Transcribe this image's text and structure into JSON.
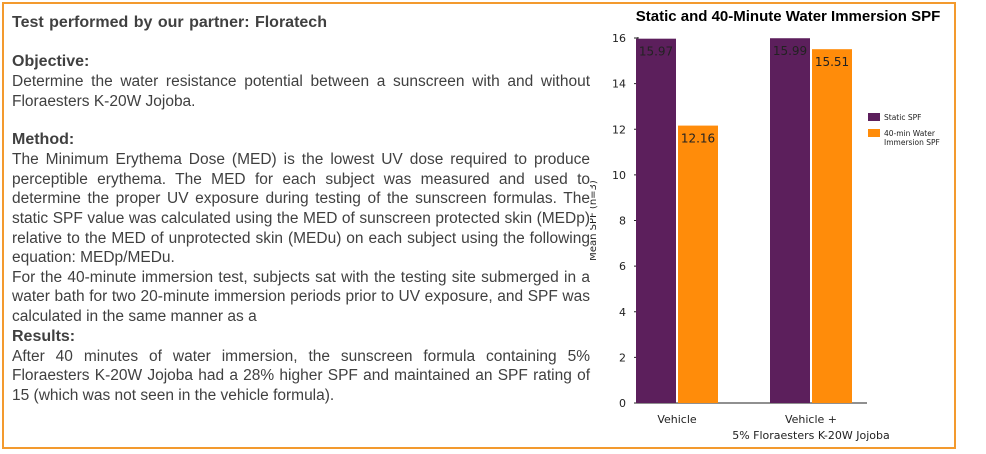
{
  "text": {
    "heading": "Test performed by our partner: Floratech",
    "objective_title": "Objective:",
    "objective_body": "Determine the water resistance potential between a sunscreen with and without Floraesters K-20W Jojoba.",
    "method_title": "Method:",
    "method_body_1": "The Minimum Erythema Dose (MED) is the lowest UV dose required to produce perceptible erythema. The MED for each subject was measured and used to determine the proper UV exposure during testing of the sunscreen formulas. The static SPF value was calculated using the MED of sunscreen protected skin (MEDp) relative to the MED of unprotected skin (MEDu) on each subject using the following equation: MEDp/MEDu.",
    "method_body_2": "For the 40-minute immersion test, subjects sat with the testing site submerged in a water bath for two 20-minute immersion periods prior to UV exposure, and SPF was calculated in the same manner as a",
    "results_title": "Results:",
    "results_body": "After 40 minutes of water immersion, the sunscreen formula containing 5% Floraesters K-20W Jojoba had a 28% higher SPF and maintained an SPF rating of 15 (which was not seen in the vehicle formula)."
  },
  "colors": {
    "border": "#f39a2e",
    "static": "#5c1f5c",
    "immersion": "#ff8c0a"
  },
  "chart_data": {
    "type": "bar",
    "title": "Static and 40-Minute Water Immersion SPF",
    "xlabel": "",
    "ylabel": "Mean SPF (n=3)",
    "ylim": [
      0,
      16
    ],
    "yticks": [
      0,
      2,
      4,
      6,
      8,
      10,
      12,
      14,
      16
    ],
    "categories": [
      [
        "Vehicle"
      ],
      [
        "Vehicle +",
        "5% Floraesters K-20W Jojoba"
      ]
    ],
    "series": [
      {
        "name": "Static SPF",
        "color": "#5c1f5c",
        "values": [
          15.97,
          15.99
        ],
        "labels": [
          "15.97",
          "15.99"
        ]
      },
      {
        "name": "40-min Water Immersion SPF",
        "legend_lines": [
          "40-min Water",
          "Immersion SPF"
        ],
        "color": "#ff8c0a",
        "values": [
          12.16,
          15.51
        ],
        "labels": [
          "12.16",
          "15.51"
        ]
      }
    ],
    "legend_position": "right",
    "grid": false
  }
}
